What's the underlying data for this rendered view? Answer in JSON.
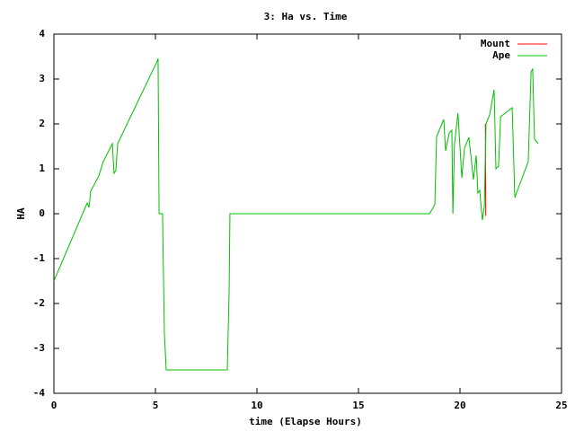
{
  "chart_data": {
    "type": "line",
    "title": "3: Ha vs. Time",
    "x_label": "time (Elapse Hours)",
    "y_label": "HA",
    "xlim": [
      0,
      25
    ],
    "xticks": [
      0,
      5,
      10,
      15,
      20,
      25
    ],
    "ylim": [
      -4,
      4
    ],
    "yticks": [
      -4,
      -3,
      -2,
      -1,
      0,
      1,
      2,
      3,
      4
    ],
    "grid": false,
    "legend": "top-right",
    "series": [
      {
        "name": "Mount",
        "color": "#ff0000",
        "x": [
          21.25,
          21.27
        ],
        "values": [
          2.0,
          -0.05
        ]
      },
      {
        "name": "Ape",
        "color": "#00c000",
        "x": [
          0,
          1.64,
          1.73,
          1.81,
          2.21,
          2.43,
          2.88,
          2.96,
          3.05,
          3.14,
          5.09,
          5.13,
          5.18,
          5.35,
          5.44,
          5.53,
          8.54,
          8.63,
          8.67,
          18.5,
          18.76,
          18.85,
          19.2,
          19.29,
          19.47,
          19.6,
          19.65,
          19.73,
          19.9,
          20.09,
          20.22,
          20.44,
          20.66,
          20.8,
          20.88,
          20.97,
          21.1,
          21.2,
          21.28,
          21.46,
          21.68,
          21.77,
          21.9,
          22.0,
          22.57,
          22.7,
          23.36,
          23.5,
          23.58,
          23.67,
          23.85
        ],
        "values": [
          -1.5,
          0.24,
          0.14,
          0.5,
          0.84,
          1.16,
          1.56,
          0.9,
          0.96,
          1.56,
          3.4,
          3.46,
          0,
          0,
          -2.64,
          -3.48,
          -3.48,
          -1.74,
          0,
          0,
          0.2,
          1.72,
          2.1,
          1.4,
          1.8,
          1.86,
          0,
          1.56,
          2.24,
          0.8,
          1.46,
          1.7,
          0.76,
          1.3,
          0.46,
          0.52,
          -0.14,
          0.16,
          2.0,
          2.2,
          2.76,
          1.0,
          1.06,
          2.16,
          2.36,
          0.36,
          1.16,
          3.16,
          3.22,
          1.66,
          1.56
        ]
      }
    ]
  }
}
